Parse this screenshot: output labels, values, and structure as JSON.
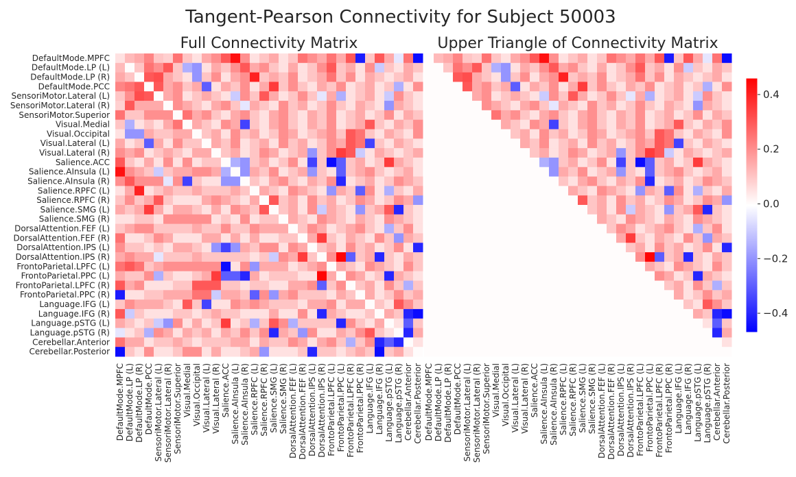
{
  "chart_data": {
    "type": "heatmap",
    "title": "Tangent-Pearson Connectivity for Subject 50003",
    "panels": [
      {
        "title": "Full Connectivity Matrix",
        "show": "full"
      },
      {
        "title": "Upper Triangle of Connectivity Matrix",
        "show": "upper"
      }
    ],
    "labels": [
      "DefaultMode.MPFC",
      "DefaultMode.LP (L)",
      "DefaultMode.LP (R)",
      "DefaultMode.PCC",
      "SensoriMotor.Lateral (L)",
      "SensoriMotor.Lateral (R)",
      "SensoriMotor.Superior",
      "Visual.Medial",
      "Visual.Occipital",
      "Visual.Lateral (L)",
      "Visual.Lateral (R)",
      "Salience.ACC",
      "Salience.AInsula (L)",
      "Salience.AInsula (R)",
      "Salience.RPFC (L)",
      "Salience.RPFC (R)",
      "Salience.SMG (L)",
      "Salience.SMG (R)",
      "DorsalAttention.FEF (L)",
      "DorsalAttention.FEF (R)",
      "DorsalAttention.IPS (L)",
      "DorsalAttention.IPS (R)",
      "FrontoParietal.LPFC (L)",
      "FrontoParietal.PPC (L)",
      "FrontoParietal.LPFC (R)",
      "FrontoParietal.PPC (R)",
      "Language.IFG (L)",
      "Language.IFG (R)",
      "Language.pSTG (L)",
      "Language.pSTG (R)",
      "Cerebellar.Anterior",
      "Cerebellar.Posterior"
    ],
    "colormap": "bwr",
    "colorbar": {
      "vmin": -0.47,
      "vmax": 0.46,
      "ticks": [
        0.4,
        0.2,
        0.0,
        -0.2,
        -0.4
      ],
      "tick_labels": [
        "0.4",
        "0.2",
        "0.0",
        "−0.2",
        "−0.4"
      ]
    },
    "upper": [
      [
        0.05,
        0.12,
        0.15,
        0.22,
        0.1,
        0.08,
        0.25,
        0.1,
        0.05,
        0.15,
        0.2,
        0.3,
        0.43,
        0.2,
        0.05,
        0.1,
        0.15,
        0.05,
        0.1,
        0.25,
        0.2,
        0.15,
        0.25,
        0.15,
        0.3,
        -0.42,
        0.1,
        0.3,
        0.15,
        -0.05,
        0.25,
        -0.45
      ],
      [
        0.0,
        0.1,
        0.25,
        0.2,
        0.3,
        0.1,
        -0.15,
        -0.2,
        0.05,
        0.15,
        0.1,
        0.2,
        0.3,
        0.15,
        0.2,
        0.1,
        0.05,
        0.15,
        0.05,
        0.1,
        0.2,
        0.3,
        0.1,
        0.15,
        0.05,
        0.2,
        -0.1,
        0.1,
        0.05,
        0.15,
        0.1
      ],
      [
        0.0,
        0.3,
        0.32,
        0.15,
        0.1,
        0.05,
        -0.2,
        0.1,
        0.2,
        0.05,
        0.15,
        0.2,
        0.4,
        0.1,
        0.15,
        0.1,
        0.2,
        0.05,
        0.1,
        0.15,
        0.25,
        0.1,
        0.2,
        0.05,
        0.15,
        0.1,
        0.05,
        0.1,
        0.15,
        0.05
      ],
      [
        0.0,
        0.3,
        0.15,
        0.2,
        0.1,
        0.15,
        -0.3,
        0.05,
        0.15,
        0.1,
        0.2,
        0.05,
        0.15,
        0.35,
        0.1,
        0.2,
        0.1,
        0.05,
        0.15,
        0.1,
        0.2,
        0.05,
        0.1,
        0.15,
        0.05,
        0.1,
        -0.15,
        0.05,
        0.2
      ],
      [
        0.0,
        0.15,
        0.2,
        0.05,
        0.1,
        0.15,
        0.1,
        0.05,
        -0.1,
        0.2,
        0.1,
        0.3,
        0.15,
        0.05,
        0.1,
        0.2,
        0.1,
        -0.05,
        0.15,
        -0.15,
        0.05,
        0.1,
        0.15,
        0.05,
        -0.1,
        0.2,
        0.1,
        0.05
      ],
      [
        0.0,
        0.2,
        0.15,
        0.1,
        0.05,
        0.15,
        0.2,
        0.1,
        -0.05,
        0.15,
        0.1,
        0.05,
        0.2,
        0.1,
        0.15,
        0.05,
        0.1,
        0.2,
        0.1,
        0.05,
        0.15,
        0.1,
        0.05,
        -0.2,
        0.15,
        0.1,
        0.05
      ],
      [
        0.0,
        0.25,
        0.15,
        0.2,
        0.1,
        0.05,
        0.15,
        0.2,
        0.1,
        0.05,
        0.15,
        0.2,
        0.1,
        0.05,
        0.15,
        0.1,
        0.2,
        0.05,
        0.1,
        0.15,
        0.05,
        0.1,
        0.2,
        0.05,
        0.15,
        0.1
      ],
      [
        0.0,
        0.15,
        0.1,
        0.05,
        0.2,
        0.15,
        -0.35,
        0.1,
        0.05,
        0.15,
        0.2,
        0.1,
        0.05,
        0.15,
        0.1,
        0.2,
        0.05,
        0.1,
        0.15,
        0.3,
        0.1,
        0.05,
        0.15,
        0.1,
        0.2
      ],
      [
        0.0,
        0.1,
        0.15,
        0.05,
        0.2,
        0.1,
        0.15,
        0.05,
        0.1,
        0.2,
        0.15,
        0.05,
        0.1,
        0.15,
        0.2,
        0.1,
        0.3,
        0.25,
        0.1,
        0.05,
        0.15,
        0.1,
        0.05,
        0.2
      ],
      [
        0.0,
        0.15,
        0.1,
        0.2,
        0.05,
        0.1,
        0.15,
        0.05,
        0.2,
        0.1,
        0.15,
        0.05,
        0.1,
        0.2,
        0.15,
        0.3,
        0.25,
        -0.35,
        0.1,
        0.05,
        0.15,
        0.1,
        0.05
      ],
      [
        0.0,
        0.1,
        0.15,
        0.05,
        0.1,
        0.2,
        0.15,
        0.05,
        0.1,
        0.15,
        -0.2,
        0.1,
        0.2,
        0.35,
        0.3,
        -0.1,
        0.05,
        0.15,
        0.1,
        0.05,
        0.1,
        0.15
      ],
      [
        0.0,
        -0.15,
        -0.2,
        0.1,
        0.15,
        0.05,
        0.1,
        0.2,
        0.05,
        -0.35,
        0.1,
        -0.45,
        -0.3,
        0.1,
        0.15,
        0.05,
        0.1,
        0.35,
        0.15,
        0.1,
        0.05
      ],
      [
        0.0,
        -0.2,
        0.15,
        0.1,
        0.2,
        0.05,
        0.1,
        0.15,
        -0.2,
        0.1,
        0.05,
        -0.3,
        0.1,
        0.15,
        0.2,
        0.1,
        0.05,
        0.1,
        0.15,
        0.05
      ],
      [
        0.0,
        0.1,
        0.05,
        0.15,
        0.2,
        0.1,
        0.05,
        0.15,
        0.1,
        0.2,
        -0.4,
        0.05,
        0.1,
        0.15,
        0.05,
        0.1,
        0.2,
        0.15,
        0.1
      ],
      [
        0.0,
        0.15,
        0.1,
        0.05,
        0.2,
        0.15,
        0.1,
        0.05,
        -0.2,
        0.15,
        0.1,
        -0.3,
        0.2,
        0.05,
        -0.15,
        0.1,
        0.05,
        0.15
      ],
      [
        0.0,
        0.3,
        0.1,
        0.15,
        0.05,
        0.2,
        0.1,
        0.15,
        0.05,
        0.1,
        0.2,
        0.15,
        0.05,
        0.1,
        0.2,
        0.15,
        -0.2
      ],
      [
        0.0,
        0.1,
        0.15,
        0.05,
        0.2,
        -0.1,
        0.15,
        0.1,
        0.05,
        -0.2,
        0.1,
        0.15,
        0.3,
        -0.4,
        0.1,
        0.05
      ],
      [
        0.0,
        0.15,
        0.1,
        0.05,
        0.2,
        0.15,
        0.1,
        0.05,
        0.15,
        0.1,
        0.05,
        0.2,
        0.15,
        0.1,
        0.05
      ],
      [
        0.0,
        0.1,
        0.2,
        0.15,
        0.05,
        0.1,
        0.15,
        0.2,
        0.1,
        0.05,
        -0.15,
        0.1,
        0.2,
        0.05
      ],
      [
        0.0,
        0.15,
        0.35,
        0.1,
        0.05,
        0.15,
        0.1,
        0.05,
        0.2,
        0.1,
        -0.2,
        0.15,
        0.1
      ],
      [
        0.0,
        0.1,
        0.15,
        0.05,
        0.2,
        0.1,
        0.15,
        0.05,
        0.1,
        0.2,
        0.05,
        -0.4
      ],
      [
        0.0,
        0.2,
        0.45,
        -0.3,
        0.1,
        0.15,
        -0.4,
        0.1,
        0.05,
        0.15,
        0.1
      ],
      [
        0.0,
        0.15,
        0.1,
        0.05,
        0.2,
        0.15,
        0.1,
        0.05,
        0.2,
        0.1
      ],
      [
        0.0,
        0.2,
        0.15,
        0.05,
        0.1,
        -0.4,
        0.15,
        0.1,
        0.05
      ],
      [
        0.0,
        0.1,
        0.15,
        0.05,
        0.2,
        0.1,
        -0.15,
        0.1
      ],
      [
        0.0,
        0.15,
        0.05,
        0.1,
        0.2,
        0.1,
        0.15
      ],
      [
        0.0,
        0.1,
        0.05,
        0.3,
        0.2,
        0.1
      ],
      [
        0.0,
        0.15,
        0.1,
        -0.4,
        -0.45
      ],
      [
        0.0,
        0.05,
        -0.3,
        0.1
      ],
      [
        0.0,
        -0.4,
        0.15
      ],
      [
        0.0,
        0.05
      ],
      [
        0.0
      ]
    ]
  }
}
